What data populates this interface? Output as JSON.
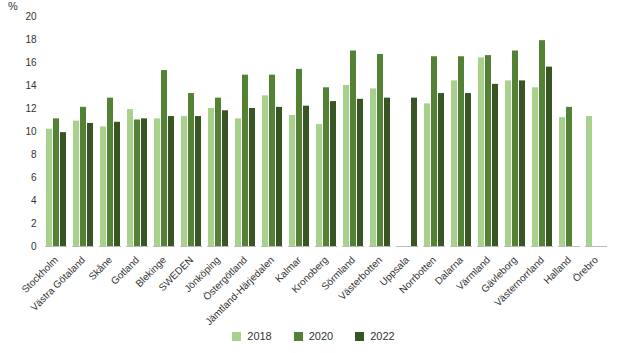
{
  "chart_data": {
    "type": "bar",
    "y_label": "%",
    "categories": [
      "Stockholm",
      "Västra Götaland",
      "Skåne",
      "Gotland",
      "Blekinge",
      "SWEDEN",
      "Jönköping",
      "Östergötland",
      "Jämtland-Härjedalen",
      "Kalmar",
      "Kronoberg",
      "Sörmland",
      "Västerbotten",
      "Uppsala",
      "Norrbotten",
      "Dalarna",
      "Värmland",
      "Gävleborg",
      "Västernorrland",
      "Halland",
      "Örebro"
    ],
    "series": [
      {
        "name": "2018",
        "color": "#a9d18e",
        "values": [
          10.2,
          10.9,
          10.4,
          11.9,
          11.1,
          11.3,
          12.0,
          11.1,
          13.1,
          11.4,
          10.6,
          14.0,
          13.7,
          null,
          12.4,
          14.4,
          16.4,
          14.4,
          13.8,
          11.2,
          11.3
        ]
      },
      {
        "name": "2020",
        "color": "#548235",
        "values": [
          11.1,
          12.1,
          12.9,
          11.0,
          15.3,
          13.3,
          12.9,
          14.9,
          14.9,
          15.4,
          13.8,
          17.0,
          16.7,
          null,
          16.5,
          16.5,
          16.6,
          17.0,
          17.9,
          12.1,
          null
        ]
      },
      {
        "name": "2022",
        "color": "#375623",
        "values": [
          9.9,
          10.7,
          10.8,
          11.1,
          11.3,
          11.3,
          11.8,
          12.0,
          12.1,
          12.2,
          12.6,
          12.8,
          12.9,
          12.9,
          13.3,
          13.3,
          14.1,
          14.4,
          15.6,
          null,
          null
        ]
      }
    ],
    "ylim": [
      0,
      20
    ],
    "yticks": [
      0,
      2,
      4,
      6,
      8,
      10,
      12,
      14,
      16,
      18,
      20
    ],
    "grid": false,
    "legend": "bottom"
  }
}
